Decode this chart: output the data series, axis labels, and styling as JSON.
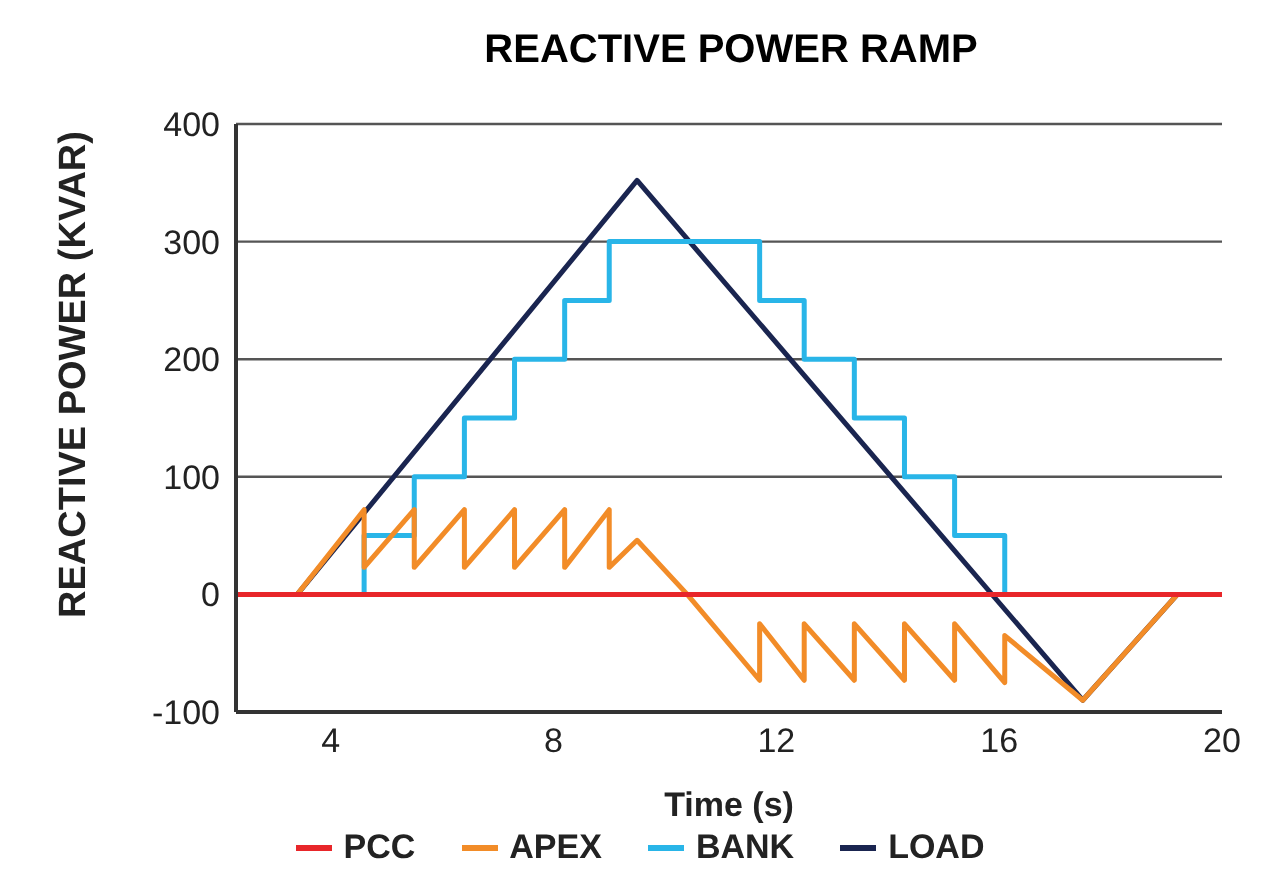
{
  "chart_data": {
    "type": "line",
    "title": "REACTIVE POWER RAMP",
    "xlabel": "Time (s)",
    "ylabel": "REACTIVE POWER (KVAR)",
    "xlim": [
      2.3,
      20
    ],
    "xticks": [
      4,
      8,
      12,
      16,
      20
    ],
    "ylim": [
      -100,
      400
    ],
    "yticks": [
      -100,
      0,
      100,
      200,
      300,
      400
    ],
    "grid": "y",
    "legend": "bottom",
    "marker": "none",
    "line_style": "solid",
    "series": [
      {
        "name": "PCC",
        "color": "#e8262a",
        "x": [
          2.3,
          20
        ],
        "values": [
          0,
          0
        ]
      },
      {
        "name": "APEX",
        "color": "#f28c28",
        "x": [
          2.3,
          3.4,
          4.6,
          4.6,
          5.5,
          5.5,
          6.4,
          6.4,
          7.3,
          7.3,
          8.2,
          8.2,
          9.0,
          9.0,
          9.5,
          10.4,
          11.7,
          11.7,
          12.5,
          12.5,
          13.4,
          13.4,
          14.3,
          14.3,
          15.2,
          15.2,
          16.1,
          16.1,
          17.5,
          19.2,
          20
        ],
        "values": [
          0,
          0,
          72,
          23,
          72,
          23,
          72,
          23,
          72,
          23,
          72,
          23,
          72,
          23,
          46,
          0,
          -73,
          -25,
          -73,
          -25,
          -73,
          -25,
          -73,
          -25,
          -73,
          -25,
          -75,
          -35,
          -90,
          0,
          0
        ]
      },
      {
        "name": "BANK",
        "type": "step",
        "color": "#29b5e8",
        "x": [
          2.3,
          4.6,
          5.5,
          6.4,
          7.3,
          8.2,
          9.0,
          11.7,
          12.5,
          13.4,
          14.3,
          15.2,
          16.1,
          20
        ],
        "values": [
          0,
          50,
          100,
          150,
          200,
          250,
          300,
          250,
          200,
          150,
          100,
          50,
          0,
          0
        ]
      },
      {
        "name": "LOAD",
        "color": "#1a2550",
        "x": [
          2.3,
          3.4,
          9.5,
          17.5,
          19.2,
          20
        ],
        "values": [
          0,
          0,
          352,
          -90,
          0,
          0
        ]
      }
    ]
  }
}
